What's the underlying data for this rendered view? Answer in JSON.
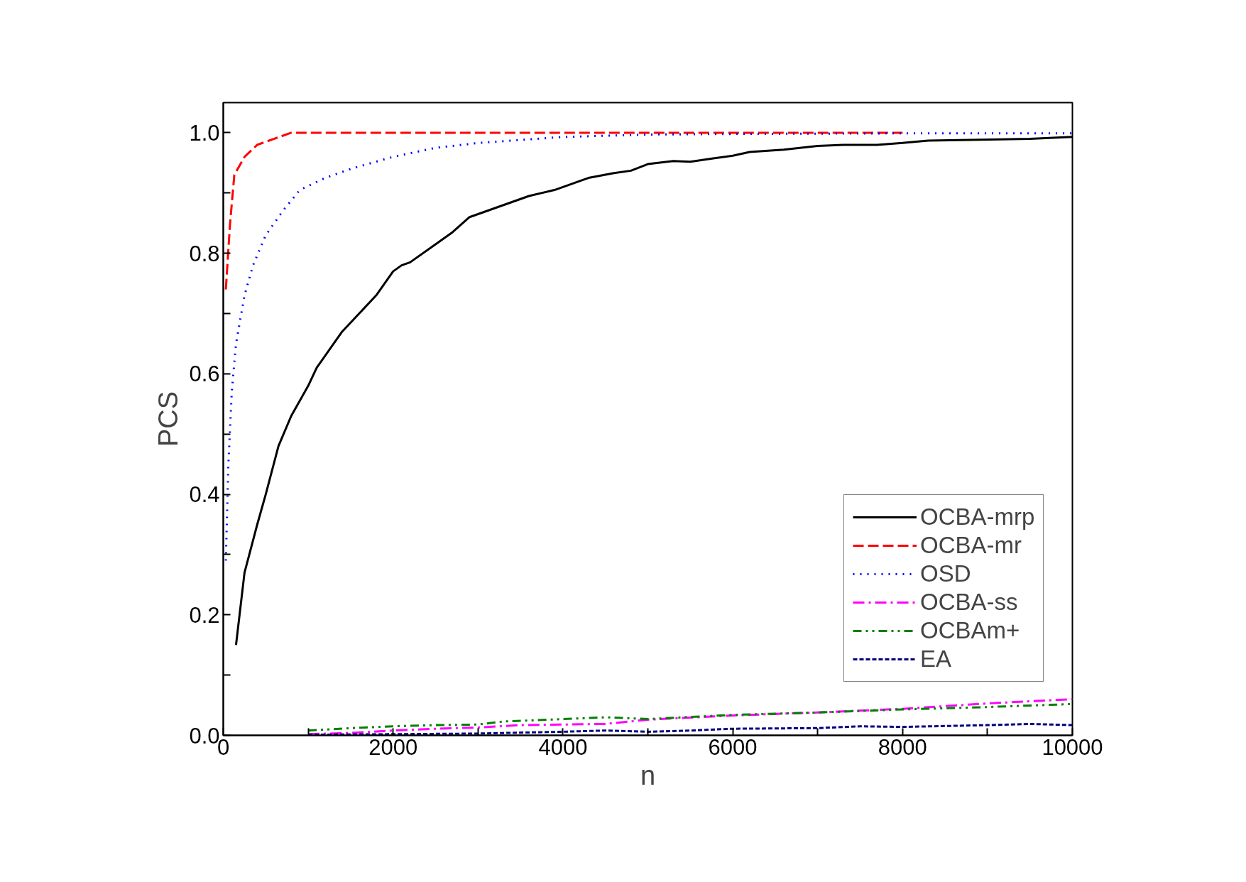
{
  "chart_data": {
    "type": "line",
    "xlabel": "n",
    "ylabel": "PCS",
    "xlim": [
      0,
      10000
    ],
    "ylim": [
      0,
      1.05
    ],
    "xticks": [
      0,
      {
        "value": 1000,
        "label": null
      },
      2000,
      {
        "value": 3000,
        "label": null
      },
      4000,
      {
        "value": 5000,
        "label": null
      },
      6000,
      {
        "value": 7000,
        "label": null
      },
      8000,
      {
        "value": 9000,
        "label": null
      },
      10000
    ],
    "yticks": [
      {
        "value": 0,
        "label": "0.0"
      },
      {
        "value": 0.1,
        "label": null
      },
      0.2,
      {
        "value": 0.3,
        "label": null
      },
      0.4,
      {
        "value": 0.5,
        "label": null
      },
      0.6,
      {
        "value": 0.7,
        "label": null
      },
      0.8,
      {
        "value": 0.9,
        "label": null
      },
      {
        "value": 1.0,
        "label": "1.0"
      }
    ],
    "grid": false,
    "legend": "bottom right",
    "marker": "none",
    "series": [
      {
        "name": "OCBA-mrp",
        "color": "#000000",
        "line_style": "solid",
        "x": [
          150,
          250,
          400,
          500,
          650,
          800,
          1000,
          1100,
          1300,
          1400,
          1600,
          1800,
          2000,
          2100,
          2200,
          2500,
          2700,
          2900,
          3100,
          3400,
          3600,
          3900,
          4100,
          4300,
          4600,
          4800,
          5000,
          5300,
          5500,
          5800,
          6000,
          6200,
          6600,
          7000,
          7300,
          7700,
          8000,
          8300,
          8800,
          9500,
          10000
        ],
        "values": [
          0.15,
          0.27,
          0.35,
          0.4,
          0.48,
          0.53,
          0.58,
          0.61,
          0.65,
          0.67,
          0.7,
          0.73,
          0.77,
          0.78,
          0.785,
          0.815,
          0.835,
          0.86,
          0.87,
          0.885,
          0.895,
          0.905,
          0.915,
          0.925,
          0.933,
          0.937,
          0.948,
          0.953,
          0.952,
          0.958,
          0.962,
          0.968,
          0.972,
          0.978,
          0.98,
          0.98,
          0.983,
          0.987,
          0.988,
          0.99,
          0.993
        ]
      },
      {
        "name": "OCBA-mr",
        "color": "#ff0000",
        "line_style": "dashed",
        "x": [
          30,
          80,
          130,
          250,
          400,
          600,
          800,
          2000,
          4000,
          6000,
          8000
        ],
        "values": [
          0.74,
          0.85,
          0.93,
          0.96,
          0.98,
          0.99,
          1.0,
          1.0,
          1.0,
          1.0,
          1.0
        ]
      },
      {
        "name": "OSD",
        "color": "#0000ff",
        "line_style": "dotted",
        "x": [
          30,
          60,
          100,
          150,
          250,
          350,
          500,
          700,
          900,
          1200,
          1500,
          2000,
          2500,
          3000,
          4000,
          5000,
          6000,
          8000,
          10000
        ],
        "values": [
          0.29,
          0.45,
          0.57,
          0.65,
          0.73,
          0.78,
          0.83,
          0.87,
          0.905,
          0.925,
          0.94,
          0.96,
          0.975,
          0.983,
          0.993,
          0.997,
          0.998,
          0.999,
          0.999
        ]
      },
      {
        "name": "OCBA-ss",
        "color": "#ff00ff",
        "line_style": "dashdot",
        "x": [
          1000,
          1500,
          2000,
          2500,
          3000,
          3500,
          4000,
          4500,
          5000,
          6000,
          7000,
          8000,
          9000,
          10000
        ],
        "values": [
          0.002,
          0.004,
          0.008,
          0.011,
          0.013,
          0.017,
          0.018,
          0.019,
          0.026,
          0.033,
          0.038,
          0.044,
          0.053,
          0.06
        ]
      },
      {
        "name": "OCBAm+",
        "color": "#008000",
        "line_style": "dashdotdot",
        "x": [
          1000,
          1500,
          2000,
          2500,
          3000,
          3300,
          4000,
          4500,
          5000,
          6000,
          7000,
          8000,
          9000,
          10000
        ],
        "values": [
          0.008,
          0.012,
          0.015,
          0.017,
          0.018,
          0.023,
          0.027,
          0.03,
          0.027,
          0.034,
          0.038,
          0.043,
          0.047,
          0.052
        ]
      },
      {
        "name": "EA",
        "color": "#000080",
        "line_style": "shortdash",
        "x": [
          1000,
          2000,
          3000,
          4000,
          4500,
          5000,
          5500,
          6000,
          7000,
          7500,
          8000,
          9000,
          9500,
          10000
        ],
        "values": [
          0.001,
          0.002,
          0.003,
          0.006,
          0.008,
          0.006,
          0.008,
          0.011,
          0.012,
          0.015,
          0.014,
          0.017,
          0.019,
          0.017
        ]
      }
    ]
  }
}
